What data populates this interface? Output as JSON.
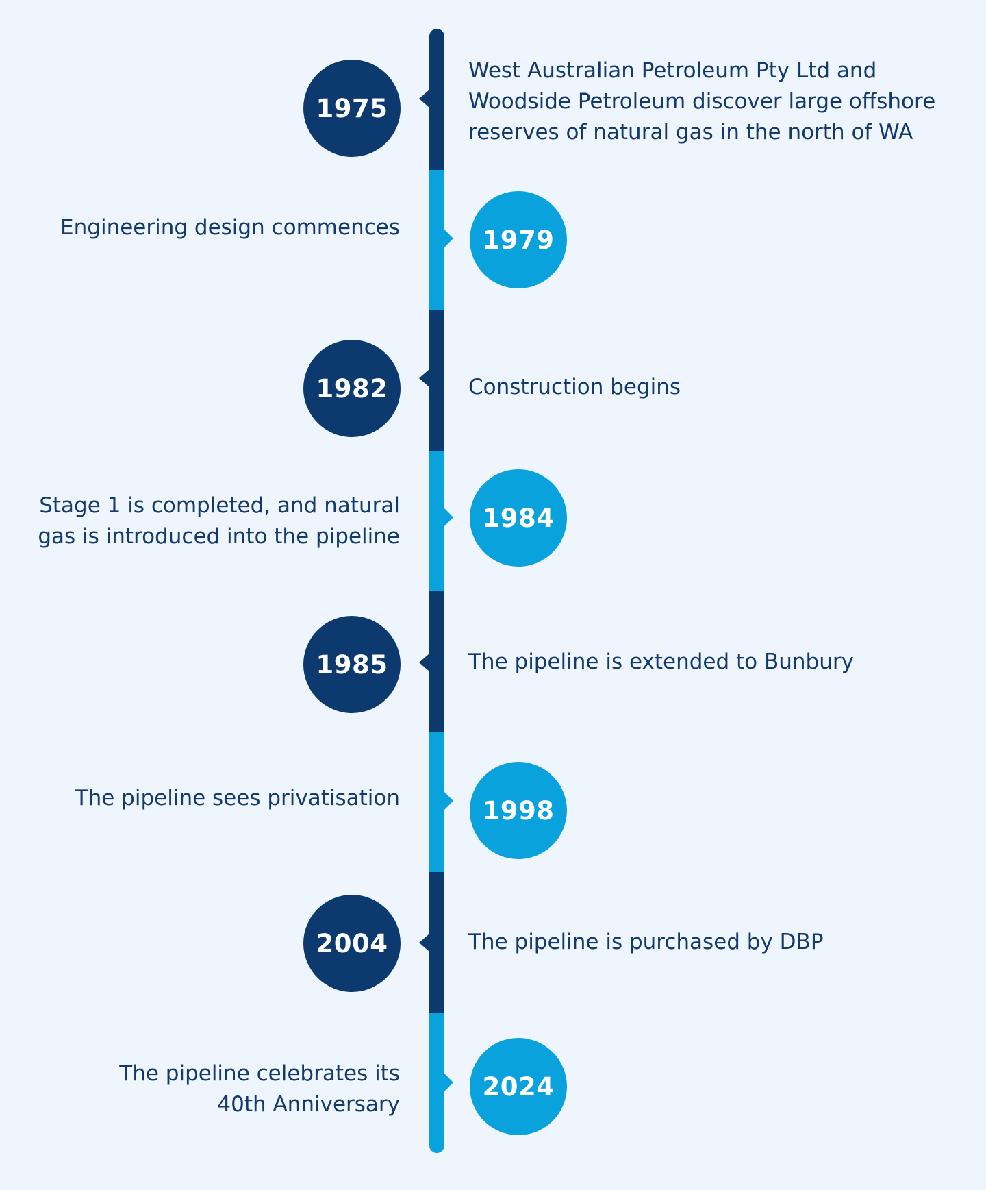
{
  "colors": {
    "background": "#eef5fc",
    "dark_blue": "#0d3a6e",
    "light_blue": "#0aa2dc",
    "text": "#133a6b"
  },
  "timeline": [
    {
      "year": "1975",
      "event": [
        "West Australian Petroleum Pty Ltd and",
        "Woodside Petroleum discover large offshore",
        "reserves of natural gas in the north of WA"
      ],
      "style": "dark"
    },
    {
      "year": "1979",
      "event": [
        "Engineering design commences"
      ],
      "style": "light"
    },
    {
      "year": "1982",
      "event": [
        "Construction begins"
      ],
      "style": "dark"
    },
    {
      "year": "1984",
      "event": [
        "Stage 1 is completed, and natural",
        "gas is introduced into the pipeline"
      ],
      "style": "light"
    },
    {
      "year": "1985",
      "event": [
        "The pipeline is extended to Bunbury"
      ],
      "style": "dark"
    },
    {
      "year": "1998",
      "event": [
        "The pipeline sees privatisation"
      ],
      "style": "light"
    },
    {
      "year": "2004",
      "event": [
        "The pipeline is purchased by DBP"
      ],
      "style": "dark"
    },
    {
      "year": "2024",
      "event": [
        "The pipeline celebrates its",
        "40th Anniversary"
      ],
      "style": "light"
    }
  ]
}
